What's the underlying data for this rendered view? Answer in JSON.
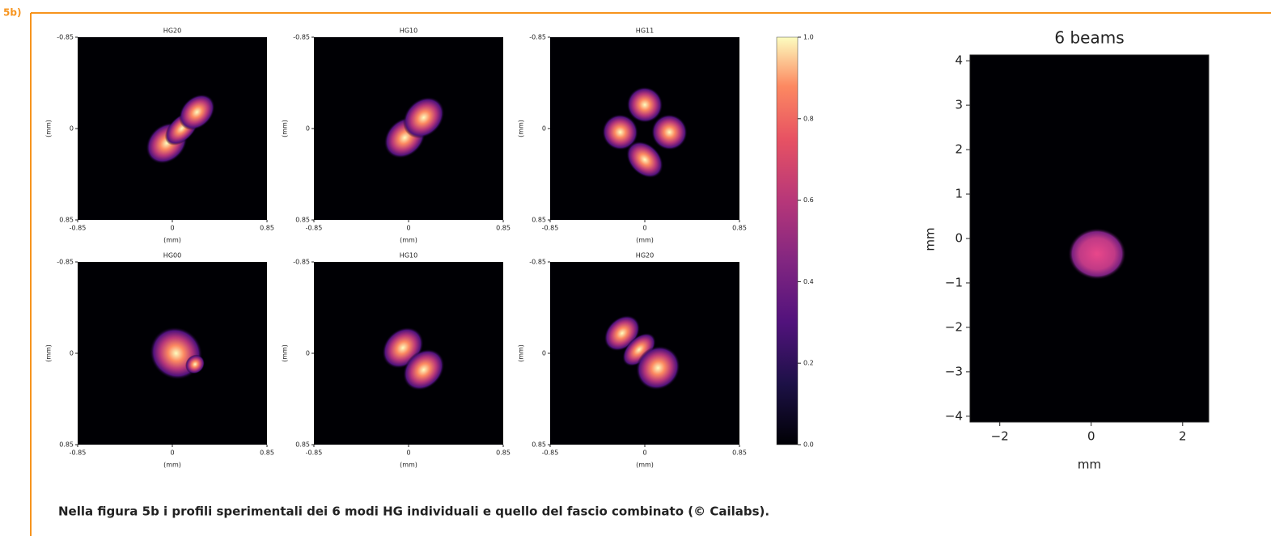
{
  "figure_label": "5b)",
  "caption": "Nella figura 5b i profili sperimentali dei 6 modi HG individuali e quello del fascio combinato (© Cailabs).",
  "panels": [
    {
      "title": "HG20",
      "x_label": "(mm)",
      "y_label": "(mm)",
      "xlim": [
        -0.85,
        0.85
      ],
      "ylim": [
        0.85,
        -0.85
      ],
      "xticks": [
        -0.85,
        0,
        0.85
      ],
      "yticks": [
        -0.85,
        0,
        0.85
      ]
    },
    {
      "title": "HG10",
      "x_label": "(mm)",
      "y_label": "(mm)",
      "xlim": [
        -0.85,
        0.85
      ],
      "ylim": [
        0.85,
        -0.85
      ],
      "xticks": [
        -0.85,
        0,
        0.85
      ],
      "yticks": [
        -0.85,
        0,
        0.85
      ]
    },
    {
      "title": "HG11",
      "x_label": "(mm)",
      "y_label": "(mm)",
      "xlim": [
        -0.85,
        0.85
      ],
      "ylim": [
        0.85,
        -0.85
      ],
      "xticks": [
        -0.85,
        0,
        0.85
      ],
      "yticks": [
        -0.85,
        0,
        0.85
      ]
    },
    {
      "title": "HG00",
      "x_label": "(mm)",
      "y_label": "(mm)",
      "xlim": [
        -0.85,
        0.85
      ],
      "ylim": [
        0.85,
        -0.85
      ],
      "xticks": [
        -0.85,
        0,
        0.85
      ],
      "yticks": [
        -0.85,
        0,
        0.85
      ]
    },
    {
      "title": "HG10",
      "x_label": "(mm)",
      "y_label": "(mm)",
      "xlim": [
        -0.85,
        0.85
      ],
      "ylim": [
        0.85,
        -0.85
      ],
      "xticks": [
        -0.85,
        0,
        0.85
      ],
      "yticks": [
        -0.85,
        0,
        0.85
      ]
    },
    {
      "title": "HG20",
      "x_label": "(mm)",
      "y_label": "(mm)",
      "xlim": [
        -0.85,
        0.85
      ],
      "ylim": [
        0.85,
        -0.85
      ],
      "xticks": [
        -0.85,
        0,
        0.85
      ],
      "yticks": [
        -0.85,
        0,
        0.85
      ]
    }
  ],
  "colorbar": {
    "lim": [
      0,
      1
    ],
    "ticks": [
      {
        "value": 0,
        "label": "0.0"
      },
      {
        "value": 0.2,
        "label": "0.2"
      },
      {
        "value": 0.4,
        "label": "0.4"
      },
      {
        "value": 0.6,
        "label": "0.6"
      },
      {
        "value": 0.8,
        "label": "0.8"
      },
      {
        "value": 1,
        "label": "1.0"
      }
    ]
  },
  "combined": {
    "title": "6 beams",
    "x_label": "mm",
    "y_label": "mm",
    "xlim": [
      -2.65,
      2.57
    ],
    "ylim": [
      -4.13,
      4.13
    ],
    "xticks": [
      {
        "value": -2,
        "label": "−2"
      },
      0,
      2
    ],
    "yticks": [
      {
        "value": -4,
        "label": "−4"
      },
      {
        "value": -3,
        "label": "−3"
      },
      {
        "value": -2,
        "label": "−2"
      },
      {
        "value": -1,
        "label": "−1"
      },
      0,
      1,
      2,
      3,
      4
    ]
  }
}
